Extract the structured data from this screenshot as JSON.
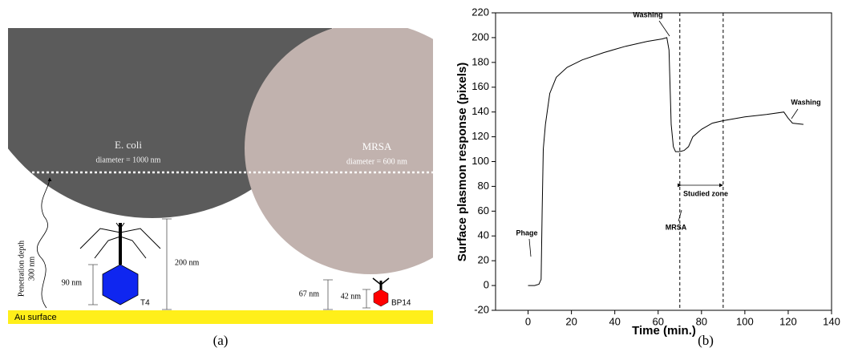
{
  "diagram": {
    "ecoli": {
      "name": "E. coli",
      "size": "diameter = 1000 nm"
    },
    "mrsa": {
      "name": "MRSA",
      "size": "diameter = 600 nm"
    },
    "penetration": {
      "label": "Penetration depth",
      "value": "300 nm"
    },
    "t4": {
      "name": "T4",
      "height": "90 nm",
      "distance": "200 nm"
    },
    "bp14": {
      "name": "BP14",
      "distance": "67 nm",
      "height": "42 nm"
    },
    "surface": "Au surface",
    "caption": "(a)"
  },
  "chart_data": {
    "type": "line",
    "x_label": "Time (min.)",
    "y_label": "Surface plasmon response (pixels)",
    "x": [
      0,
      3,
      5,
      6,
      6.5,
      7,
      8,
      10,
      13,
      18,
      25,
      35,
      45,
      55,
      62,
      64,
      65,
      66,
      67,
      68,
      70,
      72,
      74,
      76,
      80,
      85,
      90,
      100,
      110,
      118,
      120,
      122,
      127
    ],
    "values": [
      0,
      0,
      1,
      5,
      60,
      110,
      130,
      155,
      168,
      176,
      182,
      188,
      193,
      197,
      199,
      200,
      190,
      130,
      112,
      108,
      108,
      109,
      112,
      120,
      126,
      131,
      133,
      136,
      138,
      140,
      135,
      131,
      130
    ],
    "color": "#000000",
    "xlim": [
      -15,
      140
    ],
    "ylim": [
      -20,
      220
    ],
    "xticks": [
      0,
      20,
      40,
      60,
      80,
      100,
      120,
      140
    ],
    "yticks": [
      -20,
      0,
      20,
      40,
      60,
      80,
      100,
      120,
      140,
      160,
      180,
      200,
      220
    ],
    "vlines": [
      70,
      90
    ],
    "annotations": [
      "Washing",
      "MRSA",
      "Studied zone",
      "Washing",
      "Phage"
    ],
    "caption": "(b)"
  }
}
